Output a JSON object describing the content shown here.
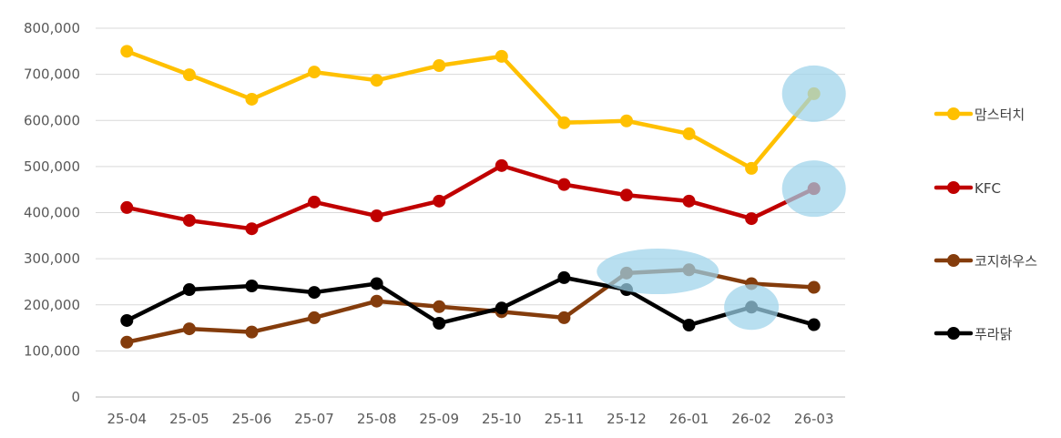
{
  "chart_data": {
    "type": "line",
    "categories": [
      "25-04",
      "25-05",
      "25-06",
      "25-07",
      "25-08",
      "25-09",
      "25-10",
      "25-11",
      "25-12",
      "26-01",
      "26-02",
      "26-03"
    ],
    "ylim": [
      0,
      800000
    ],
    "yticks": [
      0,
      100000,
      200000,
      300000,
      400000,
      500000,
      600000,
      700000,
      800000
    ],
    "ytick_labels": [
      "0",
      "100,000",
      "200,000",
      "300,000",
      "400,000",
      "500,000",
      "600,000",
      "700,000",
      "800,000"
    ],
    "grid": true,
    "legend_position": "right",
    "title": "",
    "xlabel": "",
    "ylabel": "",
    "series": [
      {
        "name": "맘스터치",
        "color": "#FFC000",
        "values": [
          750000,
          699000,
          646000,
          705000,
          687000,
          719000,
          739000,
          595000,
          599000,
          571000,
          496000,
          658000
        ]
      },
      {
        "name": "KFC",
        "color": "#C00000",
        "values": [
          411000,
          383000,
          365000,
          423000,
          393000,
          425000,
          502000,
          461000,
          438000,
          425000,
          387000,
          452000
        ]
      },
      {
        "name": "코지하우스",
        "color": "#843C0C",
        "values": [
          119000,
          148000,
          141000,
          172000,
          208000,
          196000,
          185000,
          172000,
          269000,
          276000,
          246000,
          238000
        ]
      },
      {
        "name": "푸라닭",
        "color": "#000000",
        "values": [
          166000,
          233000,
          241000,
          227000,
          246000,
          160000,
          193000,
          259000,
          233000,
          156000,
          195000,
          157000
        ]
      }
    ],
    "highlights": [
      {
        "category": "26-03",
        "series": "맘스터치"
      },
      {
        "category": "26-03",
        "series": "KFC"
      },
      {
        "category": "25-12",
        "category_end": "26-01",
        "series": "코지하우스"
      },
      {
        "category": "26-02",
        "series": "푸라닭"
      }
    ],
    "highlight_color": "#9DD3EA"
  }
}
